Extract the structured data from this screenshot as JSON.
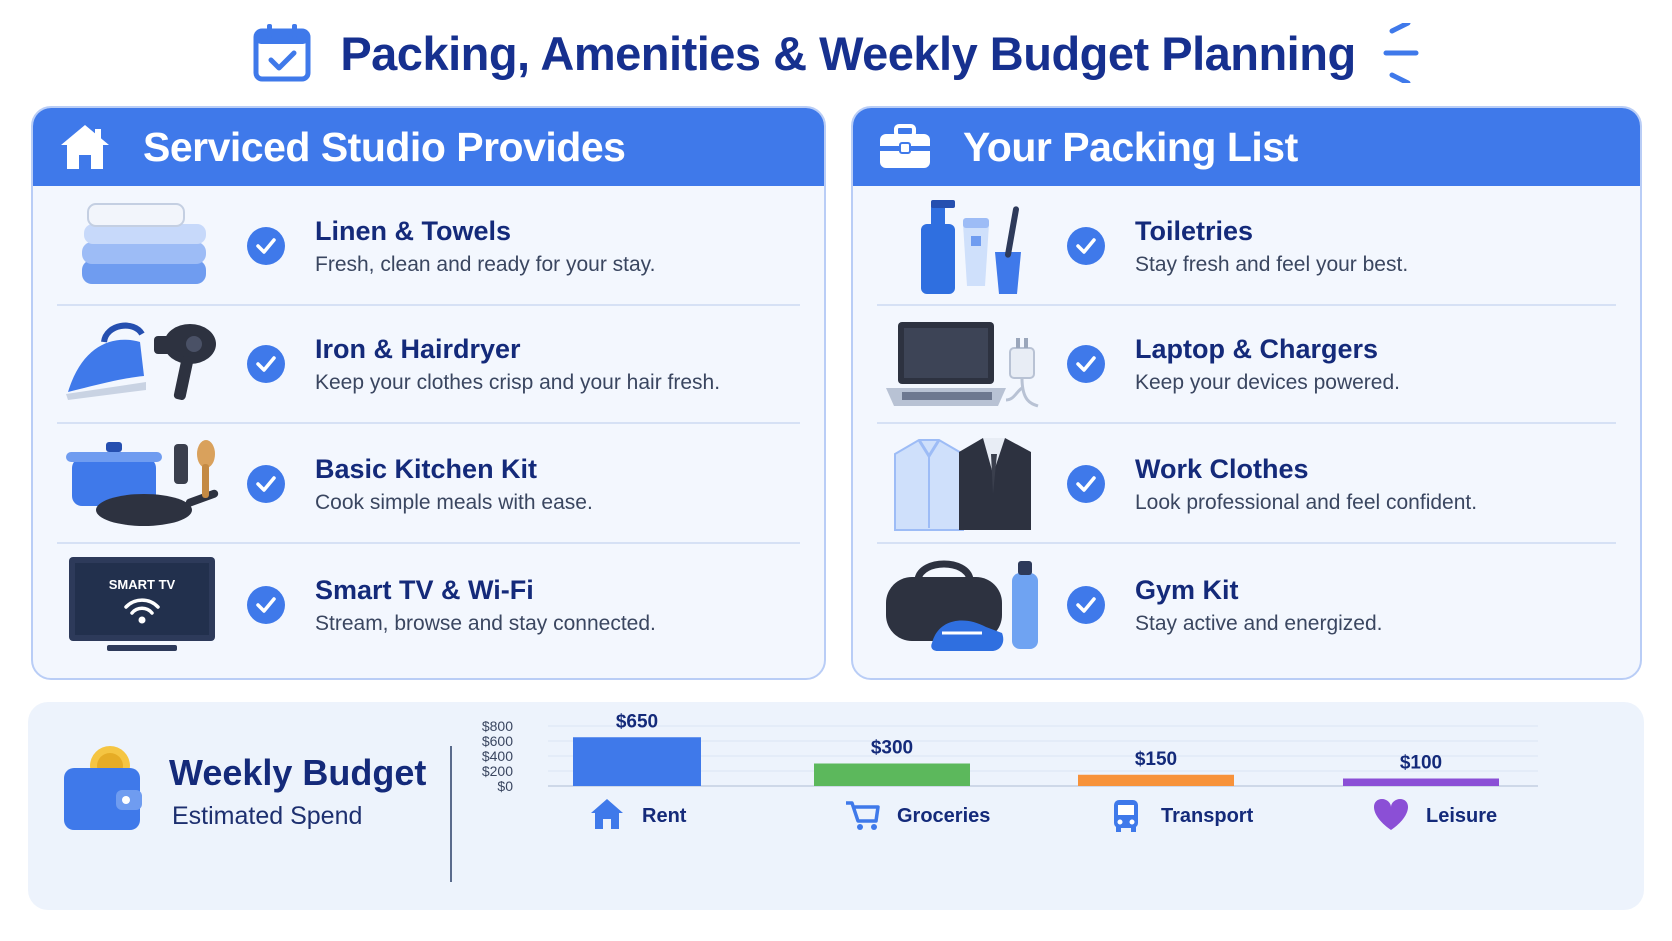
{
  "page": {
    "title": "Packing, Amenities & Weekly Budget Planning",
    "title_icon": "calendar-check-icon",
    "accent": "#3f79ea",
    "title_color": "#16308f"
  },
  "studio": {
    "title": "Serviced Studio Provides",
    "icon": "home-icon",
    "items": [
      {
        "title": "Linen & Towels",
        "desc": "Fresh, clean and ready for your stay.",
        "icon": "towels-icon"
      },
      {
        "title": "Iron & Hairdryer",
        "desc": "Keep your clothes crisp and your hair fresh.",
        "icon": "iron-hairdryer-icon"
      },
      {
        "title": "Basic Kitchen Kit",
        "desc": "Cook simple meals with ease.",
        "icon": "kitchen-kit-icon"
      },
      {
        "title": "Smart TV & Wi-Fi",
        "desc": "Stream, browse and stay connected.",
        "icon": "smart-tv-icon",
        "tv_label": "SMART TV"
      }
    ]
  },
  "packing": {
    "title": "Your Packing List",
    "icon": "briefcase-icon",
    "items": [
      {
        "title": "Toiletries",
        "desc": "Stay fresh and feel your best.",
        "icon": "toiletries-icon"
      },
      {
        "title": "Laptop & Chargers",
        "desc": "Keep your devices powered.",
        "icon": "laptop-charger-icon"
      },
      {
        "title": "Work Clothes",
        "desc": "Look professional and feel confident.",
        "icon": "work-clothes-icon"
      },
      {
        "title": "Gym Kit",
        "desc": "Stay active and energized.",
        "icon": "gym-kit-icon"
      }
    ]
  },
  "budget": {
    "title": "Weekly Budget",
    "subtitle": "Estimated Spend",
    "icon": "wallet-icon"
  },
  "chart_data": {
    "type": "bar",
    "categories": [
      "Rent",
      "Groceries",
      "Transport",
      "Leisure"
    ],
    "values": [
      650,
      300,
      150,
      100
    ],
    "value_labels": [
      "$650",
      "$300",
      "$150",
      "$100"
    ],
    "yticks": [
      "$0",
      "$200",
      "$400",
      "$600",
      "$800"
    ],
    "colors": [
      "#3f79ea",
      "#5cb85c",
      "#f7923a",
      "#8b4fd6"
    ],
    "category_icons": [
      "home-icon",
      "cart-icon",
      "bus-icon",
      "heart-icon"
    ],
    "ylim": [
      0,
      800
    ],
    "grid": true
  }
}
